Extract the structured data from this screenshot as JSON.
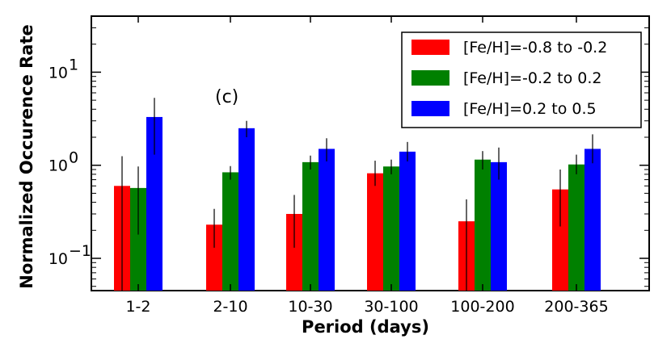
{
  "chart_data": {
    "type": "bar",
    "panel_label": "(c)",
    "xlabel": "Period (days)",
    "ylabel": "Normalized Occurence Rate",
    "yscale": "log",
    "ylim": [
      0.045,
      40
    ],
    "categories": [
      "1-2",
      "2-10",
      "10-30",
      "30-100",
      "100-200",
      "200-365"
    ],
    "series": [
      {
        "name": "[Fe/H]=-0.8 to -0.2",
        "color": "#ff0000",
        "values": [
          0.6,
          0.23,
          0.3,
          0.82,
          0.25,
          0.55
        ],
        "err_low": [
          0.045,
          0.13,
          0.13,
          0.6,
          0.045,
          0.22
        ],
        "err_high": [
          1.25,
          0.34,
          0.48,
          1.12,
          0.43,
          0.9
        ]
      },
      {
        "name": "[Fe/H]=-0.2 to 0.2",
        "color": "#008000",
        "values": [
          0.57,
          0.84,
          1.08,
          0.97,
          1.15,
          1.02
        ],
        "err_low": [
          0.18,
          0.7,
          0.9,
          0.8,
          0.9,
          0.8
        ],
        "err_high": [
          0.97,
          0.98,
          1.27,
          1.15,
          1.42,
          1.3
        ]
      },
      {
        "name": "[Fe/H]=0.2 to 0.5",
        "color": "#0000ff",
        "values": [
          3.3,
          2.5,
          1.5,
          1.4,
          1.08,
          1.5
        ],
        "err_low": [
          1.3,
          2.0,
          1.1,
          1.1,
          0.7,
          1.05
        ],
        "err_high": [
          5.3,
          3.0,
          1.95,
          1.78,
          1.55,
          2.15
        ]
      }
    ],
    "yticks": [
      {
        "value": 0.1,
        "base": "10",
        "exp": "−1"
      },
      {
        "value": 1,
        "base": "10",
        "exp": "0"
      },
      {
        "value": 10,
        "base": "10",
        "exp": "1"
      }
    ],
    "legend_position": "top-right",
    "grid": false
  }
}
